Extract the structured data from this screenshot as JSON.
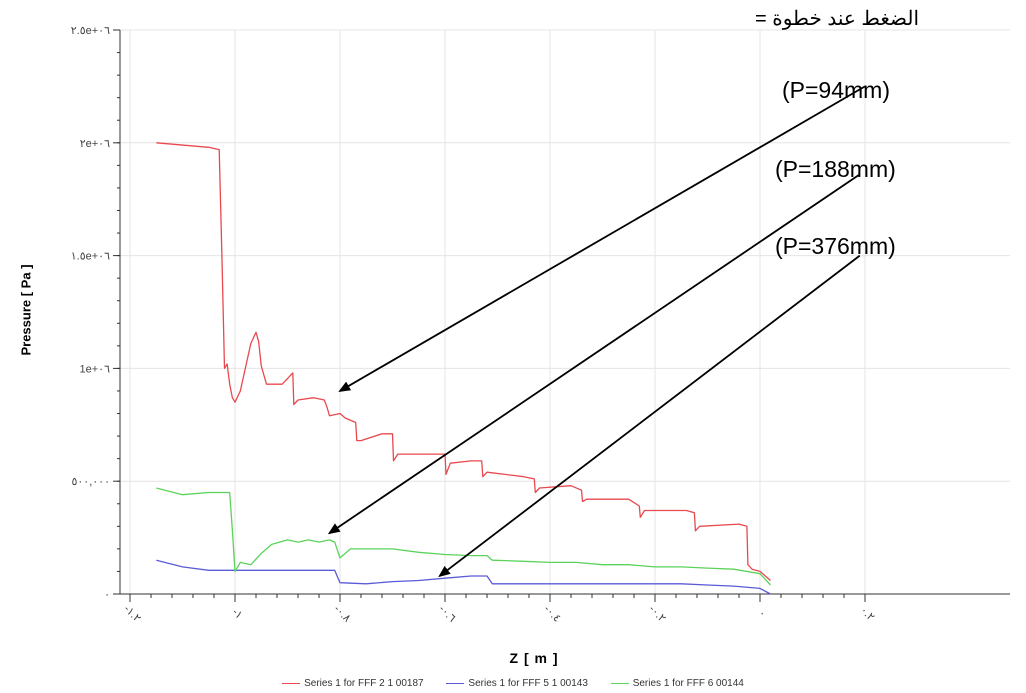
{
  "annotations": {
    "title": "الضغط عند خطوة =",
    "p1": "(P=94mm)",
    "p2": "(P=188mm)",
    "p3": "(P=376mm)"
  },
  "colors": {
    "series1": "#e8494e",
    "series2": "#5b5bd6",
    "series3": "#5bd35b",
    "arrow": "#000000",
    "grid": "#e4e4e4",
    "axis": "#333333"
  },
  "chart_data": {
    "type": "line",
    "xlabel": "Z [ m ]",
    "ylabel": "Pressure [ Pa ]",
    "xlim": [
      -1.2,
      0.5
    ],
    "ylim": [
      0,
      2500000
    ],
    "x_ticks": [
      -1.2,
      -1.0,
      -0.8,
      -0.6,
      -0.4,
      -0.2,
      0,
      0.2
    ],
    "x_tick_labels": [
      "-١.٢",
      "-١",
      "-٠.٨",
      "-٠.٦",
      "-٠.٤",
      "-٠.٢",
      "٠",
      "٠.٢"
    ],
    "y_ticks": [
      0,
      500000,
      1000000,
      1500000,
      2000000,
      2500000
    ],
    "y_tick_labels": [
      "٠",
      "٥٠٠,٠٠٠",
      "1e+٠٦",
      "١.٥e+٠٦",
      "٢e+٠٦",
      "٢.٥e+٠٦"
    ],
    "grid": true,
    "legend_position": "bottom",
    "series": [
      {
        "name": "Series 1 for FFF 2 1 00187",
        "color": "#e8494e",
        "x": [
          -1.15,
          -1.05,
          -1.03,
          -1.025,
          -1.02,
          -1.015,
          -1.01,
          -1.005,
          -1.0,
          -0.99,
          -0.97,
          -0.96,
          -0.955,
          -0.95,
          -0.94,
          -0.91,
          -0.89,
          -0.888,
          -0.88,
          -0.85,
          -0.83,
          -0.825,
          -0.82,
          -0.8,
          -0.79,
          -0.77,
          -0.768,
          -0.76,
          -0.72,
          -0.7,
          -0.698,
          -0.69,
          -0.62,
          -0.6,
          -0.598,
          -0.59,
          -0.55,
          -0.53,
          -0.528,
          -0.52,
          -0.45,
          -0.43,
          -0.428,
          -0.42,
          -0.36,
          -0.34,
          -0.338,
          -0.33,
          -0.25,
          -0.23,
          -0.228,
          -0.22,
          -0.14,
          -0.125,
          -0.123,
          -0.115,
          -0.04,
          -0.025,
          -0.023,
          -0.015,
          0.0,
          0.02
        ],
        "y": [
          2000000,
          1980000,
          1970000,
          1500000,
          1000000,
          1020000,
          930000,
          870000,
          850000,
          900000,
          1110000,
          1160000,
          1120000,
          1010000,
          930000,
          930000,
          980000,
          840000,
          860000,
          870000,
          860000,
          830000,
          790000,
          800000,
          780000,
          760000,
          680000,
          680000,
          710000,
          710000,
          590000,
          620000,
          620000,
          620000,
          530000,
          580000,
          590000,
          590000,
          520000,
          540000,
          520000,
          510000,
          450000,
          470000,
          480000,
          460000,
          410000,
          420000,
          420000,
          390000,
          340000,
          370000,
          370000,
          360000,
          280000,
          300000,
          310000,
          300000,
          130000,
          110000,
          100000,
          60000
        ]
      },
      {
        "name": "Series 1 for FFF 5 1 00143",
        "color": "#5b5bd6",
        "x": [
          -1.15,
          -1.1,
          -1.05,
          -1.0,
          -0.95,
          -0.9,
          -0.85,
          -0.81,
          -0.8,
          -0.75,
          -0.7,
          -0.65,
          -0.6,
          -0.55,
          -0.52,
          -0.51,
          -0.45,
          -0.4,
          -0.35,
          -0.3,
          -0.25,
          -0.2,
          -0.15,
          -0.1,
          -0.05,
          0.0,
          0.02
        ],
        "y": [
          150000,
          120000,
          105000,
          105000,
          105000,
          105000,
          105000,
          105000,
          50000,
          45000,
          55000,
          60000,
          70000,
          80000,
          80000,
          45000,
          45000,
          45000,
          45000,
          45000,
          45000,
          45000,
          45000,
          40000,
          35000,
          25000,
          0
        ]
      },
      {
        "name": "Series 1 for FFF 6 00144",
        "color": "#5bd35b",
        "x": [
          -1.15,
          -1.1,
          -1.05,
          -1.01,
          -1.005,
          -1.0,
          -0.99,
          -0.97,
          -0.95,
          -0.93,
          -0.9,
          -0.88,
          -0.86,
          -0.84,
          -0.82,
          -0.81,
          -0.8,
          -0.78,
          -0.75,
          -0.7,
          -0.65,
          -0.6,
          -0.55,
          -0.52,
          -0.51,
          -0.45,
          -0.4,
          -0.35,
          -0.3,
          -0.25,
          -0.2,
          -0.15,
          -0.1,
          -0.05,
          0.0,
          0.02
        ],
        "y": [
          470000,
          440000,
          450000,
          450000,
          280000,
          100000,
          140000,
          130000,
          180000,
          220000,
          240000,
          230000,
          240000,
          230000,
          240000,
          230000,
          160000,
          200000,
          200000,
          200000,
          185000,
          175000,
          170000,
          170000,
          150000,
          145000,
          140000,
          140000,
          130000,
          130000,
          120000,
          120000,
          115000,
          110000,
          90000,
          40000
        ]
      }
    ]
  },
  "arrows": [
    {
      "label": "p1",
      "from": [
        0.2,
        2250000
      ],
      "to": [
        -0.8,
        900000
      ]
    },
    {
      "label": "p2",
      "from": [
        0.19,
        1860000
      ],
      "to": [
        -0.82,
        270000
      ]
    },
    {
      "label": "p3",
      "from": [
        0.19,
        1500000
      ],
      "to": [
        -0.61,
        80000
      ]
    }
  ]
}
